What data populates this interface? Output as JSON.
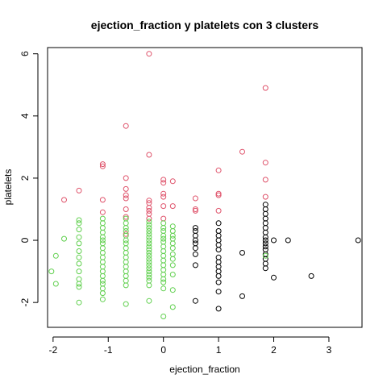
{
  "chart_data": {
    "type": "scatter",
    "title": "ejection_fraction  y  platelets con  3  clusters",
    "xlabel": "ejection_fraction",
    "ylabel": "platelets",
    "xlim": [
      -2.1,
      3.6
    ],
    "ylim": [
      -2.8,
      6.2
    ],
    "xticks": [
      -2,
      -1,
      0,
      1,
      2,
      3
    ],
    "yticks": [
      -2,
      0,
      2,
      4,
      6
    ],
    "grid": false,
    "series": [
      {
        "color": "#000000",
        "points": [
          [
            0.58,
            0.4
          ],
          [
            0.58,
            0.3
          ],
          [
            0.58,
            0.15
          ],
          [
            0.58,
            0
          ],
          [
            0.58,
            -0.1
          ],
          [
            0.58,
            -0.25
          ],
          [
            0.58,
            -0.45
          ],
          [
            0.58,
            -0.8
          ],
          [
            0.58,
            -1.95
          ],
          [
            1.0,
            0.55
          ],
          [
            1.0,
            0.3
          ],
          [
            1.0,
            0.15
          ],
          [
            1.0,
            0
          ],
          [
            1.0,
            -0.15
          ],
          [
            1.0,
            -0.3
          ],
          [
            1.0,
            -0.55
          ],
          [
            1.0,
            -0.7
          ],
          [
            1.0,
            -0.85
          ],
          [
            1.0,
            -1.0
          ],
          [
            1.0,
            -1.15
          ],
          [
            1.0,
            -1.35
          ],
          [
            1.0,
            -1.65
          ],
          [
            1.0,
            -2.2
          ],
          [
            1.43,
            -0.4
          ],
          [
            1.43,
            -1.8
          ],
          [
            1.85,
            1.15
          ],
          [
            1.85,
            1.0
          ],
          [
            1.85,
            0.85
          ],
          [
            1.85,
            0.7
          ],
          [
            1.85,
            0.55
          ],
          [
            1.85,
            0.4
          ],
          [
            1.85,
            0.25
          ],
          [
            1.85,
            0.1
          ],
          [
            1.85,
            0
          ],
          [
            1.85,
            -0.1
          ],
          [
            1.85,
            -0.2
          ],
          [
            1.85,
            -0.3
          ],
          [
            1.85,
            -0.45
          ],
          [
            1.85,
            -0.6
          ],
          [
            1.85,
            -0.75
          ],
          [
            1.85,
            -0.9
          ],
          [
            2.0,
            0
          ],
          [
            2.0,
            -1.2
          ],
          [
            2.26,
            0
          ],
          [
            2.68,
            -1.15
          ],
          [
            3.53,
            0
          ]
        ]
      },
      {
        "color": "#DF536B",
        "points": [
          [
            -1.8,
            1.3
          ],
          [
            -1.53,
            1.6
          ],
          [
            -1.1,
            2.45
          ],
          [
            -1.1,
            2.38
          ],
          [
            -1.1,
            1.3
          ],
          [
            -1.1,
            0.9
          ],
          [
            -0.68,
            3.68
          ],
          [
            -0.68,
            2.0
          ],
          [
            -0.68,
            1.65
          ],
          [
            -0.68,
            1.45
          ],
          [
            -0.68,
            1.35
          ],
          [
            -0.68,
            1.0
          ],
          [
            -0.68,
            0.75
          ],
          [
            -0.68,
            0.2
          ],
          [
            -0.26,
            6.0
          ],
          [
            -0.26,
            2.75
          ],
          [
            -0.26,
            1.28
          ],
          [
            -0.26,
            1.2
          ],
          [
            -0.26,
            1.05
          ],
          [
            -0.26,
            0.95
          ],
          [
            -0.26,
            0.85
          ],
          [
            -0.26,
            0.7
          ],
          [
            0.0,
            1.95
          ],
          [
            0.0,
            1.85
          ],
          [
            0.0,
            1.5
          ],
          [
            0.0,
            1.4
          ],
          [
            0.0,
            1.1
          ],
          [
            0.0,
            0.7
          ],
          [
            0.17,
            1.9
          ],
          [
            0.17,
            1.1
          ],
          [
            0.58,
            1.35
          ],
          [
            0.58,
            1.0
          ],
          [
            0.58,
            0.95
          ],
          [
            1.0,
            2.25
          ],
          [
            1.0,
            1.5
          ],
          [
            1.0,
            1.45
          ],
          [
            1.0,
            0.95
          ],
          [
            1.43,
            2.85
          ],
          [
            1.85,
            4.9
          ],
          [
            1.85,
            2.5
          ],
          [
            1.85,
            1.95
          ],
          [
            1.85,
            1.4
          ]
        ]
      },
      {
        "color": "#61D04F",
        "points": [
          [
            -2.03,
            -1.0
          ],
          [
            -1.95,
            -0.5
          ],
          [
            -1.95,
            -1.4
          ],
          [
            -1.8,
            0.05
          ],
          [
            -1.53,
            0.65
          ],
          [
            -1.53,
            0.55
          ],
          [
            -1.53,
            0.35
          ],
          [
            -1.53,
            0.1
          ],
          [
            -1.53,
            -0.1
          ],
          [
            -1.53,
            -0.35
          ],
          [
            -1.53,
            -0.55
          ],
          [
            -1.53,
            -0.75
          ],
          [
            -1.53,
            -1.0
          ],
          [
            -1.53,
            -1.25
          ],
          [
            -1.53,
            -1.4
          ],
          [
            -1.53,
            -1.5
          ],
          [
            -1.53,
            -2.0
          ],
          [
            -1.1,
            0.7
          ],
          [
            -1.1,
            0.55
          ],
          [
            -1.1,
            0.4
          ],
          [
            -1.1,
            0.25
          ],
          [
            -1.1,
            0.1
          ],
          [
            -1.1,
            0
          ],
          [
            -1.1,
            -0.1
          ],
          [
            -1.1,
            -0.25
          ],
          [
            -1.1,
            -0.4
          ],
          [
            -1.1,
            -0.55
          ],
          [
            -1.1,
            -0.7
          ],
          [
            -1.1,
            -0.85
          ],
          [
            -1.1,
            -1.0
          ],
          [
            -1.1,
            -1.15
          ],
          [
            -1.1,
            -1.3
          ],
          [
            -1.1,
            -1.4
          ],
          [
            -1.1,
            -1.55
          ],
          [
            -1.1,
            -1.7
          ],
          [
            -1.1,
            -1.9
          ],
          [
            -0.68,
            0.7
          ],
          [
            -0.68,
            0.55
          ],
          [
            -0.68,
            0.4
          ],
          [
            -0.68,
            0.3
          ],
          [
            -0.68,
            0.15
          ],
          [
            -0.68,
            0
          ],
          [
            -0.68,
            -0.1
          ],
          [
            -0.68,
            -0.25
          ],
          [
            -0.68,
            -0.4
          ],
          [
            -0.68,
            -0.55
          ],
          [
            -0.68,
            -0.7
          ],
          [
            -0.68,
            -0.85
          ],
          [
            -0.68,
            -1.0
          ],
          [
            -0.68,
            -1.15
          ],
          [
            -0.68,
            -1.3
          ],
          [
            -0.68,
            -1.45
          ],
          [
            -0.68,
            -2.05
          ],
          [
            -0.26,
            0.6
          ],
          [
            -0.26,
            0.5
          ],
          [
            -0.26,
            0.4
          ],
          [
            -0.26,
            0.3
          ],
          [
            -0.26,
            0.2
          ],
          [
            -0.26,
            0.1
          ],
          [
            -0.26,
            0
          ],
          [
            -0.26,
            -0.1
          ],
          [
            -0.26,
            -0.2
          ],
          [
            -0.26,
            -0.3
          ],
          [
            -0.26,
            -0.4
          ],
          [
            -0.26,
            -0.5
          ],
          [
            -0.26,
            -0.6
          ],
          [
            -0.26,
            -0.7
          ],
          [
            -0.26,
            -0.8
          ],
          [
            -0.26,
            -0.9
          ],
          [
            -0.26,
            -1.0
          ],
          [
            -0.26,
            -1.1
          ],
          [
            -0.26,
            -1.2
          ],
          [
            -0.26,
            -1.3
          ],
          [
            -0.26,
            -1.45
          ],
          [
            -0.26,
            -1.95
          ],
          [
            0.0,
            0.55
          ],
          [
            0.0,
            0.4
          ],
          [
            0.0,
            0.3
          ],
          [
            0.0,
            0.15
          ],
          [
            0.0,
            0.05
          ],
          [
            0.0,
            -0.05
          ],
          [
            0.0,
            -0.2
          ],
          [
            0.0,
            -0.35
          ],
          [
            0.0,
            -0.5
          ],
          [
            0.0,
            -0.65
          ],
          [
            0.0,
            -0.8
          ],
          [
            0.0,
            -0.95
          ],
          [
            0.0,
            -1.1
          ],
          [
            0.0,
            -1.25
          ],
          [
            0.0,
            -1.35
          ],
          [
            0.0,
            -1.55
          ],
          [
            0.0,
            -2.45
          ],
          [
            0.17,
            0.45
          ],
          [
            0.17,
            0.3
          ],
          [
            0.17,
            0.15
          ],
          [
            0.17,
            0.05
          ],
          [
            0.17,
            -0.1
          ],
          [
            0.17,
            -0.25
          ],
          [
            0.17,
            -0.45
          ],
          [
            0.17,
            -0.6
          ],
          [
            0.17,
            -0.8
          ],
          [
            0.17,
            -1.1
          ],
          [
            0.17,
            -1.6
          ],
          [
            0.17,
            -2.15
          ],
          [
            1.85,
            -0.5
          ]
        ]
      }
    ]
  }
}
